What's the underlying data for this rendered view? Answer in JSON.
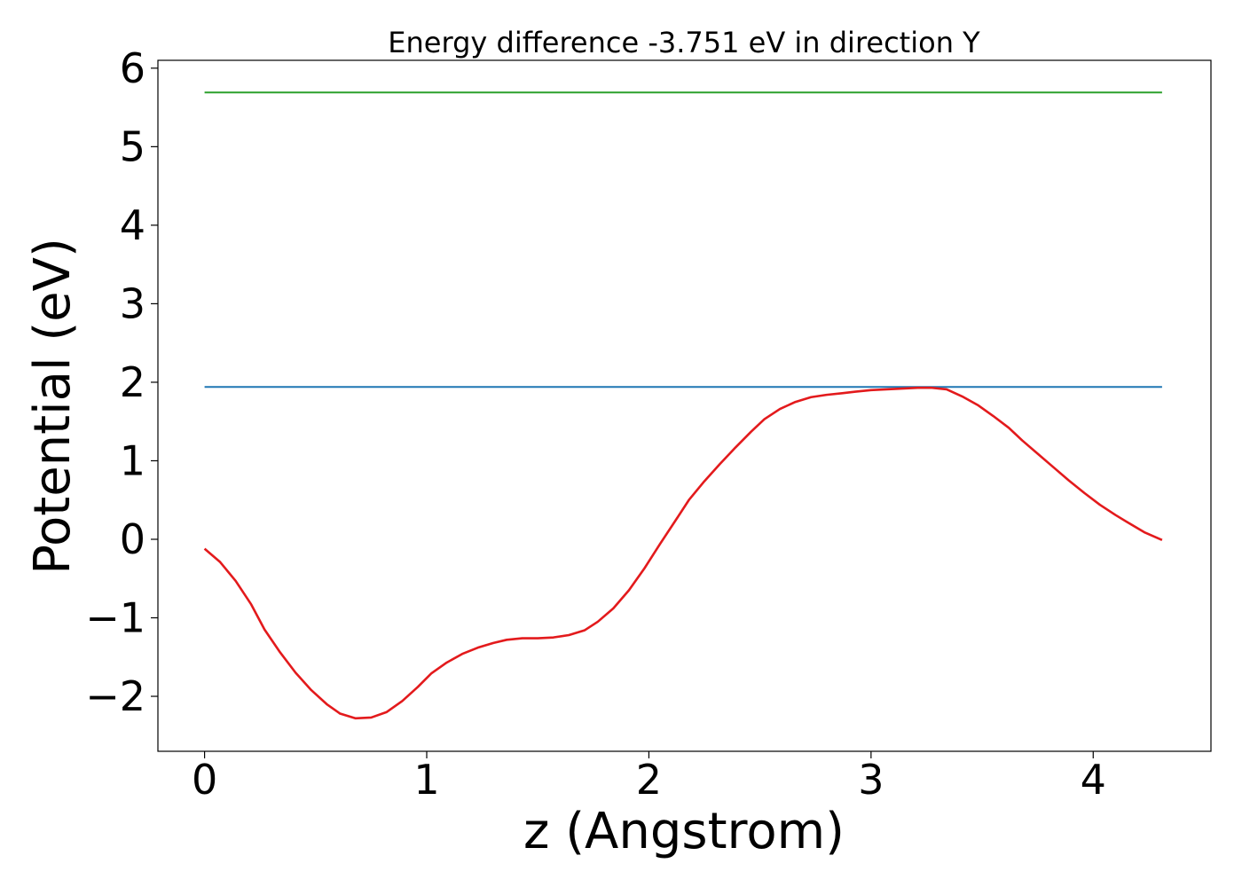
{
  "chart_data": {
    "type": "line",
    "title": "Energy difference -3.751 eV in direction Y",
    "xlabel": "z (Angstrom)",
    "ylabel": "Potential (eV)",
    "xlim": [
      -0.21,
      4.53
    ],
    "ylim": [
      -2.7,
      6.1
    ],
    "x_ticks": [
      0,
      1,
      2,
      3,
      4
    ],
    "y_ticks": [
      -2,
      -1,
      0,
      1,
      2,
      3,
      4,
      5,
      6
    ],
    "x_tick_labels": [
      "0",
      "1",
      "2",
      "3",
      "4"
    ],
    "y_tick_labels": [
      "−2",
      "−1",
      "0",
      "1",
      "2",
      "3",
      "4",
      "5",
      "6"
    ],
    "grid": false,
    "legend": "none",
    "series": [
      {
        "color": "#2ca02c",
        "x": [
          0,
          4.31
        ],
        "y": [
          5.69,
          5.69
        ]
      },
      {
        "color": "#1f77b4",
        "x": [
          0,
          4.31
        ],
        "y": [
          1.94,
          1.94
        ]
      },
      {
        "color": "#e31a1c",
        "x": [
          0,
          0.07,
          0.14,
          0.21,
          0.27,
          0.34,
          0.41,
          0.48,
          0.55,
          0.61,
          0.68,
          0.75,
          0.82,
          0.89,
          0.96,
          1.02,
          1.09,
          1.16,
          1.23,
          1.3,
          1.36,
          1.43,
          1.5,
          1.57,
          1.64,
          1.71,
          1.77,
          1.84,
          1.91,
          1.98,
          2.05,
          2.12,
          2.18,
          2.25,
          2.32,
          2.39,
          2.46,
          2.52,
          2.59,
          2.66,
          2.73,
          2.8,
          2.87,
          2.93,
          3.0,
          3.07,
          3.14,
          3.21,
          3.27,
          3.34,
          3.41,
          3.48,
          3.55,
          3.62,
          3.68,
          3.75,
          3.82,
          3.89,
          3.96,
          4.03,
          4.1,
          4.17,
          4.23,
          4.31
        ],
        "y": [
          -0.12,
          -0.29,
          -0.53,
          -0.83,
          -1.15,
          -1.44,
          -1.7,
          -1.92,
          -2.1,
          -2.22,
          -2.28,
          -2.27,
          -2.2,
          -2.06,
          -1.88,
          -1.71,
          -1.57,
          -1.46,
          -1.38,
          -1.32,
          -1.28,
          -1.26,
          -1.26,
          -1.25,
          -1.22,
          -1.16,
          -1.05,
          -0.88,
          -0.65,
          -0.37,
          -0.06,
          0.24,
          0.5,
          0.74,
          0.96,
          1.17,
          1.37,
          1.53,
          1.66,
          1.75,
          1.81,
          1.84,
          1.86,
          1.88,
          1.9,
          1.91,
          1.92,
          1.93,
          1.93,
          1.91,
          1.82,
          1.71,
          1.57,
          1.42,
          1.26,
          1.09,
          0.92,
          0.75,
          0.59,
          0.44,
          0.31,
          0.19,
          0.09,
          -0.01
        ]
      }
    ]
  }
}
